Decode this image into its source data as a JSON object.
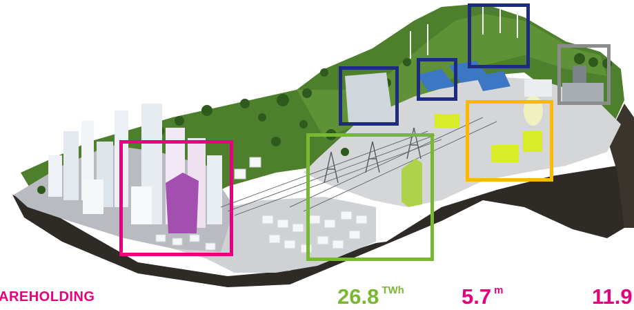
{
  "colors": {
    "pink": "#e6007e",
    "green": "#78b832",
    "navy": "#1d2c7c",
    "yellow": "#fbb900",
    "gray": "#8c8c8c",
    "grass": "#4e7f2c",
    "soil": "#2e2b27",
    "lime": "#d9ec2a"
  },
  "highlights": [
    {
      "id": "city",
      "color": "pink"
    },
    {
      "id": "grid",
      "color": "green"
    },
    {
      "id": "hydro",
      "color": "navy"
    },
    {
      "id": "solar",
      "color": "navy"
    },
    {
      "id": "wind",
      "color": "navy"
    },
    {
      "id": "nuclear",
      "color": "yellow"
    },
    {
      "id": "coal",
      "color": "gray"
    }
  ],
  "stats": {
    "shareholding_label": "AREHOLDING",
    "energy_value": "26.8",
    "energy_unit": "TWh",
    "customers_value": "5.7",
    "customers_unit": "m",
    "partial_value": "11.9"
  }
}
